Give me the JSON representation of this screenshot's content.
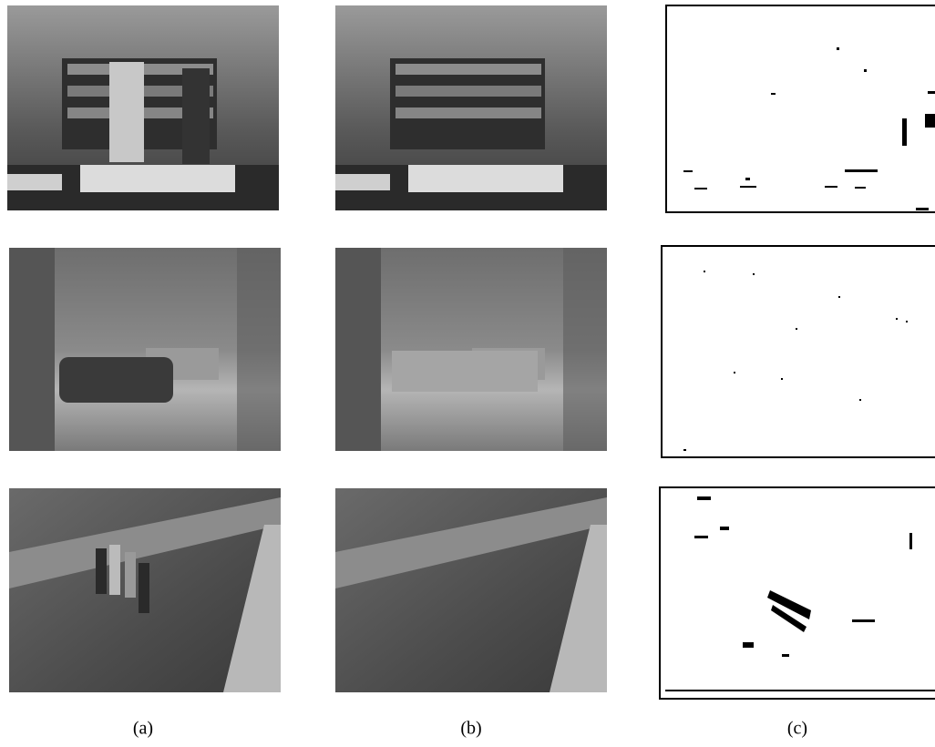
{
  "captions": [
    "(a)",
    "(b)",
    "(c)"
  ]
}
